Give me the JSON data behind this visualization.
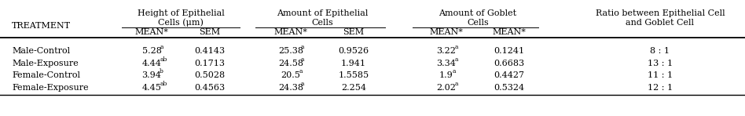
{
  "rows": [
    [
      "Male-Control",
      "5.28",
      "a",
      "0.4143",
      "25.38",
      "a",
      "0.9526",
      "3.22",
      "a",
      "0.1241",
      "8 : 1"
    ],
    [
      "Male-Exposure",
      "4.44",
      "ab",
      "0.1713",
      "24.58",
      "a",
      "1.941",
      "3.34",
      "a",
      "0.6683",
      "13 : 1"
    ],
    [
      "Female-Control",
      "3.94",
      "b",
      "0.5028",
      "20.5",
      "a",
      "1.5585",
      "1.9",
      "a",
      "0.4427",
      "11 : 1"
    ],
    [
      "Female-Exposure",
      "4.45",
      "ab",
      "0.4563",
      "24.38",
      "a",
      "2.254",
      "2.02",
      "a",
      "0.5324",
      "12 : 1"
    ]
  ],
  "background_color": "#ffffff",
  "font_size": 8.0
}
